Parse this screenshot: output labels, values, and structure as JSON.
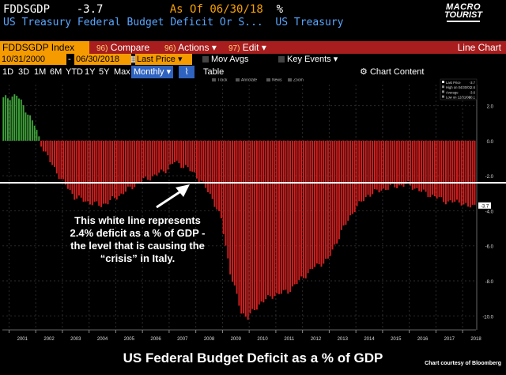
{
  "header": {
    "ticker": "FDDSGDP",
    "last_value": "-3.7",
    "as_of_label": "As Of",
    "as_of_date": "06/30/18",
    "unit": "%",
    "description": "US Treasury Federal Budget Deficit Or S...",
    "source": "US Treasury"
  },
  "logo": {
    "line1": "MACRO",
    "line2": "TOURIST",
    "line3": "MACRO TOURIST"
  },
  "toolbar": {
    "security": "FDDSGDP Index",
    "compare_num": "96)",
    "compare": "Compare",
    "actions_num": "96)",
    "actions": "Actions",
    "edit_num": "97)",
    "edit": "Edit",
    "view": "Line Chart"
  },
  "datebar": {
    "start": "10/31/2000",
    "end": "06/30/2018",
    "field": "Last Price",
    "mov_avgs": "Mov Avgs",
    "key_events": "Key Events"
  },
  "periods": [
    "1D",
    "3D",
    "1M",
    "6M",
    "YTD",
    "1Y",
    "5Y",
    "Max"
  ],
  "period_selected": "Monthly",
  "table_label": "Table",
  "chart_content_label": "Chart Content",
  "mini_legend": [
    "Track",
    "Annotate",
    "News",
    "Zoom"
  ],
  "stats": {
    "rows": [
      {
        "label": "Last Price",
        "value": "-3.7"
      },
      {
        "label": "High on 04/30/01",
        "value": "2.6"
      },
      {
        "label": "Average",
        "value": "-3.6"
      },
      {
        "label": "Low on 12/31/09",
        "value": "-10.1"
      }
    ]
  },
  "annotation": "This white line represents 2.4% deficit as a % of GDP - the level that is causing the “crisis” in Italy.",
  "title": "US Federal Budget Deficit as a % of GDP",
  "courtesy": "Chart courtesy of Bloomberg",
  "colors": {
    "surplus": "#3fa53a",
    "deficit": "#d42020",
    "reference_line": "#ffffff",
    "accent_orange": "#f5a000",
    "title_blue": "#58a6ff",
    "bar_red": "#a81d1d"
  },
  "chart_data": {
    "type": "bar",
    "frequency": "monthly",
    "x_start": "2000-10",
    "x_end": "2018-06",
    "x_tick_labels": [
      "2001",
      "2002",
      "2003",
      "2004",
      "2005",
      "2006",
      "2007",
      "2008",
      "2009",
      "2010",
      "2011",
      "2012",
      "2013",
      "2014",
      "2015",
      "2016",
      "2017",
      "2018"
    ],
    "y_tick_labels": [
      2.0,
      0.0,
      -2.0,
      -4.0,
      -6.0,
      -8.0,
      -10.0
    ],
    "ylim": [
      -10.8,
      3.2
    ],
    "reference_line": -2.4,
    "last_value": -3.7,
    "anchors": [
      [
        "2000-10",
        2.4
      ],
      [
        "2001-04",
        2.6
      ],
      [
        "2001-08",
        1.8
      ],
      [
        "2001-12",
        0.9
      ],
      [
        "2002-03",
        -0.2
      ],
      [
        "2002-07",
        -1.2
      ],
      [
        "2002-12",
        -2.2
      ],
      [
        "2003-06",
        -3.2
      ],
      [
        "2003-12",
        -3.5
      ],
      [
        "2004-06",
        -3.7
      ],
      [
        "2004-12",
        -3.3
      ],
      [
        "2005-06",
        -2.8
      ],
      [
        "2005-12",
        -2.3
      ],
      [
        "2006-06",
        -2.0
      ],
      [
        "2006-12",
        -1.6
      ],
      [
        "2007-03",
        -1.2
      ],
      [
        "2007-08",
        -1.5
      ],
      [
        "2007-12",
        -1.9
      ],
      [
        "2008-04",
        -2.5
      ],
      [
        "2008-08",
        -3.3
      ],
      [
        "2008-12",
        -4.5
      ],
      [
        "2009-04",
        -7.5
      ],
      [
        "2009-09",
        -9.8
      ],
      [
        "2009-12",
        -10.1
      ],
      [
        "2010-06",
        -9.2
      ],
      [
        "2010-12",
        -8.8
      ],
      [
        "2011-06",
        -8.6
      ],
      [
        "2011-12",
        -7.9
      ],
      [
        "2012-06",
        -7.2
      ],
      [
        "2012-12",
        -6.8
      ],
      [
        "2013-06",
        -5.2
      ],
      [
        "2013-12",
        -3.9
      ],
      [
        "2014-06",
        -3.1
      ],
      [
        "2014-12",
        -2.8
      ],
      [
        "2015-06",
        -2.6
      ],
      [
        "2015-12",
        -2.5
      ],
      [
        "2016-06",
        -2.9
      ],
      [
        "2016-12",
        -3.2
      ],
      [
        "2017-06",
        -3.5
      ],
      [
        "2017-12",
        -3.5
      ],
      [
        "2018-03",
        -3.8
      ],
      [
        "2018-06",
        -3.7
      ]
    ]
  }
}
